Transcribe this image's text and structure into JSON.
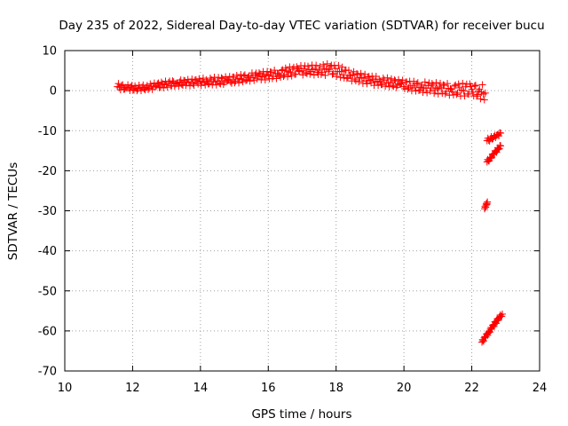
{
  "chart_data": {
    "type": "scatter",
    "title": "Day 235 of 2022, Sidereal Day-to-day VTEC variation (SDTVAR) for receiver bucu",
    "xlabel": "GPS time / hours",
    "ylabel": "SDTVAR / TECUs",
    "xlim": [
      10,
      24
    ],
    "ylim": [
      -70,
      10
    ],
    "xticks": [
      10,
      12,
      14,
      16,
      18,
      20,
      22,
      24
    ],
    "yticks": [
      10,
      0,
      -10,
      -20,
      -30,
      -40,
      -50,
      -60,
      -70
    ],
    "grid": true,
    "marker": "plus",
    "color": "#ff0000",
    "series": [
      {
        "name": "main-trace",
        "x": [
          11.55,
          11.8,
          12.1,
          12.4,
          12.7,
          13.0,
          13.3,
          13.6,
          13.9,
          14.2,
          14.5,
          14.8,
          15.1,
          15.4,
          15.7,
          16.0,
          16.3,
          16.6,
          16.9,
          17.2,
          17.5,
          17.8,
          18.1,
          18.4,
          18.7,
          19.0,
          19.3,
          19.6,
          19.9,
          20.2,
          20.5,
          20.8,
          21.1,
          21.4,
          21.7,
          22.0,
          22.2,
          22.4
        ],
        "y": [
          1.0,
          0.8,
          0.6,
          0.8,
          1.2,
          1.6,
          1.9,
          2.0,
          2.1,
          2.3,
          2.4,
          2.5,
          2.9,
          3.3,
          3.6,
          3.8,
          4.2,
          4.7,
          5.0,
          5.2,
          5.1,
          5.3,
          4.8,
          3.8,
          3.2,
          2.6,
          2.3,
          2.0,
          1.6,
          1.2,
          0.9,
          0.7,
          0.5,
          0.3,
          0.2,
          0.3,
          -0.1,
          -0.6
        ],
        "spread": [
          0.8,
          0.7,
          0.7,
          0.7,
          0.8,
          0.8,
          0.8,
          0.8,
          0.9,
          0.9,
          1.0,
          1.0,
          1.0,
          1.0,
          1.0,
          1.1,
          1.1,
          1.2,
          1.2,
          1.2,
          1.3,
          1.5,
          1.4,
          1.3,
          1.2,
          1.2,
          1.1,
          1.1,
          1.1,
          1.2,
          1.3,
          1.4,
          1.4,
          1.5,
          1.6,
          1.7,
          1.8,
          1.9
        ]
      },
      {
        "name": "segment-a",
        "x": [
          22.45,
          22.55,
          22.65,
          22.75,
          22.85
        ],
        "y": [
          -12.5,
          -12.0,
          -11.5,
          -11.0,
          -10.6
        ],
        "spread": [
          0.5,
          0.5,
          0.5,
          0.5,
          0.5
        ]
      },
      {
        "name": "segment-b",
        "x": [
          22.45,
          22.55,
          22.65,
          22.75,
          22.85
        ],
        "y": [
          -17.8,
          -16.8,
          -15.8,
          -14.8,
          -13.8
        ],
        "spread": [
          0.4,
          0.4,
          0.4,
          0.4,
          0.4
        ]
      },
      {
        "name": "segment-c",
        "x": [
          22.38,
          22.42,
          22.46
        ],
        "y": [
          -29.5,
          -28.6,
          -27.8
        ],
        "spread": [
          0.3,
          0.3,
          0.3
        ]
      },
      {
        "name": "segment-d",
        "x": [
          22.3,
          22.4,
          22.5,
          22.6,
          22.7,
          22.8,
          22.9
        ],
        "y": [
          -62.8,
          -61.5,
          -60.3,
          -59.1,
          -57.9,
          -56.8,
          -55.8
        ],
        "spread": [
          0.4,
          0.4,
          0.4,
          0.4,
          0.4,
          0.4,
          0.4
        ]
      }
    ]
  }
}
